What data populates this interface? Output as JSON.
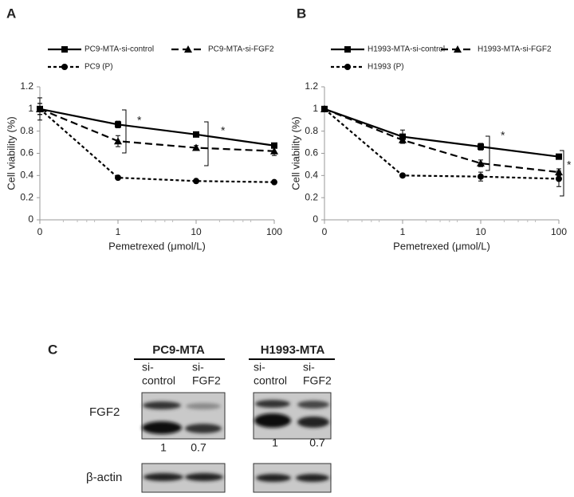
{
  "chart_data": [
    {
      "type": "line",
      "panel": "A",
      "x_label": "Pemetrexed (μmol/L)",
      "y_label": "Cell viability (%)",
      "categories": [
        "0",
        "1",
        "10",
        "100"
      ],
      "ylim": [
        0,
        1.2
      ],
      "yticks": [
        0,
        0.2,
        0.4,
        0.6,
        0.8,
        1,
        1.2
      ],
      "series": [
        {
          "name": "PC9-MTA-si-control",
          "color": "#000000",
          "dash": "solid",
          "marker": "square",
          "values": [
            1,
            0.86,
            0.77,
            0.67
          ],
          "errors": [
            0.1,
            0.03,
            0.02,
            0.02
          ]
        },
        {
          "name": "PC9-MTA-si-FGF2",
          "color": "#000000",
          "dash": "dashed",
          "marker": "triangle",
          "values": [
            1,
            0.71,
            0.65,
            0.62
          ],
          "errors": [
            0.05,
            0.05,
            0.02,
            0.04
          ]
        },
        {
          "name": "PC9 (P)",
          "color": "#000000",
          "dash": "dotted",
          "marker": "circle",
          "values": [
            1,
            0.38,
            0.35,
            0.34
          ],
          "errors": [
            0.05,
            0.01,
            0.01,
            0.01
          ]
        }
      ],
      "annotations": [
        "*",
        "*"
      ]
    },
    {
      "type": "line",
      "panel": "B",
      "x_label": "Pemetrexed (μmol/L)",
      "y_label": "Cell viability (%)",
      "categories": [
        "0",
        "1",
        "10",
        "100"
      ],
      "ylim": [
        0,
        1.2
      ],
      "yticks": [
        0,
        0.2,
        0.4,
        0.6,
        0.8,
        1,
        1.2
      ],
      "series": [
        {
          "name": "H1993-MTA-si-control",
          "color": "#000000",
          "dash": "solid",
          "marker": "square",
          "values": [
            1,
            0.75,
            0.66,
            0.57
          ],
          "errors": [
            0.02,
            0.06,
            0.03,
            0.02
          ]
        },
        {
          "name": "H1993-MTA-si-FGF2",
          "color": "#000000",
          "dash": "dashed",
          "marker": "triangle",
          "values": [
            1,
            0.72,
            0.51,
            0.43
          ],
          "errors": [
            0.02,
            0.03,
            0.03,
            0.03
          ]
        },
        {
          "name": "H1993 (P)",
          "color": "#000000",
          "dash": "dotted",
          "marker": "circle",
          "values": [
            1,
            0.4,
            0.39,
            0.37
          ],
          "errors": [
            0.02,
            0.01,
            0.04,
            0.07
          ]
        }
      ],
      "annotations": [
        "*",
        "*"
      ]
    }
  ],
  "panel_c": {
    "label": "C",
    "groups": [
      {
        "title": "PC9-MTA",
        "lanes": [
          [
            "si-",
            "control"
          ],
          [
            "si-",
            "FGF2"
          ]
        ],
        "quant": [
          1,
          0.7
        ]
      },
      {
        "title": "H1993-MTA",
        "lanes": [
          [
            "si-",
            "control"
          ],
          [
            "si-",
            "FGF2"
          ]
        ],
        "quant": [
          1,
          0.7
        ]
      }
    ],
    "rows": [
      "FGF2",
      "β-actin"
    ]
  }
}
